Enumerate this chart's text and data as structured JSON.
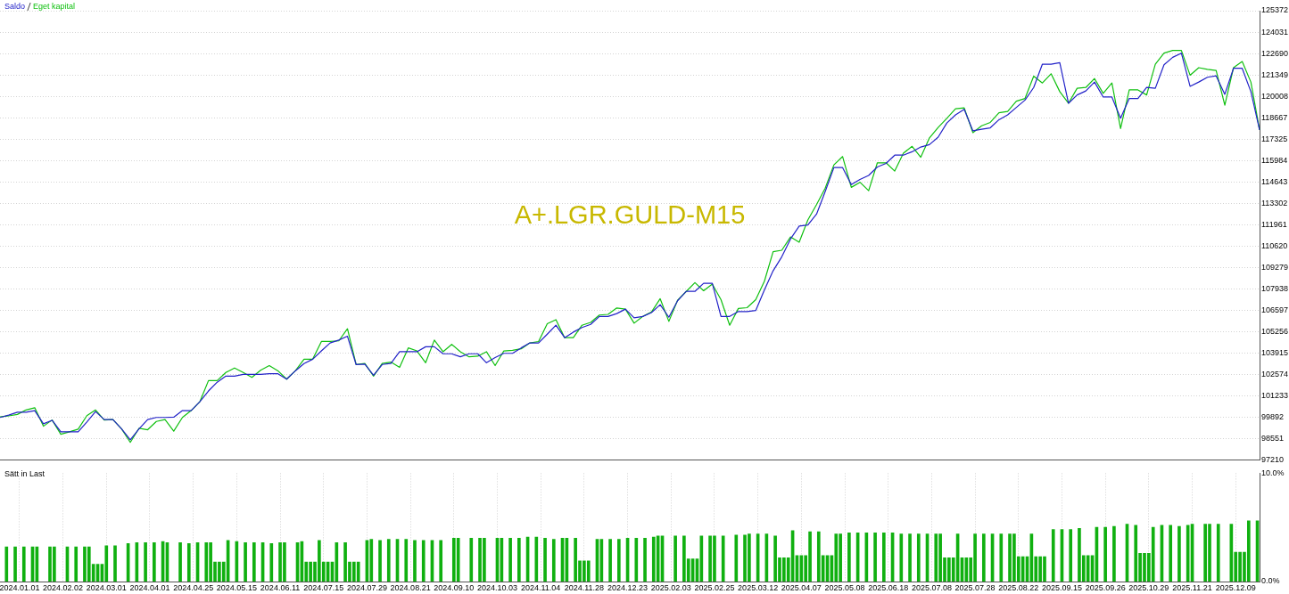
{
  "chart_data": [
    {
      "type": "line",
      "title": "A+.LGR.GULD-M15",
      "legend": "top left",
      "marker": "none",
      "grid": "y",
      "tick_labels": "y",
      "categories": [
        null,
        null,
        null,
        null,
        null,
        null,
        null,
        null,
        null,
        null,
        null,
        null,
        null,
        null,
        null,
        null,
        null,
        null,
        null,
        null,
        null,
        null,
        null,
        null,
        null,
        null,
        null,
        null,
        null,
        null,
        null,
        null,
        null,
        null,
        null,
        null,
        null,
        null,
        null,
        null,
        null,
        null,
        null,
        null,
        null,
        null,
        null,
        null,
        null,
        null,
        null,
        null,
        null,
        null,
        null,
        null,
        null,
        null,
        null,
        null,
        null,
        null,
        null,
        null,
        null,
        null,
        null,
        null,
        null,
        null,
        null,
        null,
        null,
        null,
        null,
        null,
        null,
        null,
        null,
        null,
        null,
        null,
        null,
        null,
        null,
        null,
        null,
        null,
        null,
        null,
        null,
        null,
        null,
        null,
        null,
        null,
        null,
        null,
        null,
        null,
        null,
        null,
        null,
        null,
        null,
        null,
        null,
        null,
        null,
        null,
        null,
        null,
        null,
        null,
        null,
        null,
        null,
        null,
        null,
        null,
        null,
        null,
        null,
        null,
        null,
        null,
        null,
        null,
        null,
        null,
        null,
        null,
        null,
        null,
        null,
        null,
        null,
        null,
        null,
        null,
        null,
        null,
        null,
        null,
        null,
        null
      ],
      "ylim": [
        97210,
        125372
      ],
      "yticks": [
        97210,
        98551,
        99892,
        101233,
        102574,
        103915,
        105256,
        106597,
        107938,
        109279,
        110620,
        111961,
        113302,
        114643,
        115984,
        117325,
        118667,
        120008,
        121349,
        122690,
        124031,
        125372
      ],
      "series": [
        {
          "name": "Saldo",
          "color": "#2222c8",
          "values": [
            99880,
            100030,
            100210,
            100210,
            100310,
            99480,
            99700,
            98980,
            98980,
            98980,
            99600,
            100250,
            99750,
            99750,
            99160,
            98480,
            99160,
            99750,
            99880,
            99880,
            99900,
            100310,
            100310,
            100860,
            101540,
            102090,
            102470,
            102470,
            102580,
            102580,
            102580,
            102620,
            102620,
            102280,
            102800,
            103260,
            103530,
            104050,
            104550,
            104730,
            104970,
            103190,
            103220,
            102520,
            103200,
            103260,
            104000,
            104000,
            104000,
            104310,
            104310,
            103870,
            103870,
            103680,
            103870,
            103870,
            103310,
            103630,
            103900,
            103900,
            104240,
            104550,
            104550,
            105100,
            105660,
            104880,
            105230,
            105520,
            105710,
            106210,
            106210,
            106390,
            106670,
            106120,
            106210,
            106450,
            106950,
            106160,
            107190,
            107780,
            107780,
            108290,
            108290,
            106210,
            106210,
            106520,
            106520,
            106580,
            107870,
            109070,
            109950,
            111060,
            111870,
            111940,
            112620,
            114040,
            115540,
            115540,
            114470,
            114800,
            115050,
            115580,
            115800,
            116320,
            116320,
            116530,
            116830,
            116980,
            117450,
            118330,
            118840,
            119190,
            117840,
            117940,
            118030,
            118540,
            118840,
            119310,
            119770,
            120560,
            122020,
            122020,
            122110,
            119570,
            120090,
            120340,
            120900,
            119960,
            119960,
            118630,
            119870,
            119870,
            120560,
            120510,
            121980,
            122450,
            122710,
            120630,
            120900,
            121200,
            121290,
            120130,
            121760,
            121760,
            120300,
            117900
          ]
        },
        {
          "name": "Eget kapital",
          "color": "#10c010",
          "values": [
            99910,
            99980,
            100070,
            100350,
            100490,
            99330,
            99720,
            98830,
            98980,
            99150,
            99990,
            100350,
            99720,
            99750,
            99160,
            98320,
            99200,
            99110,
            99630,
            99750,
            99020,
            99880,
            100310,
            100860,
            102190,
            102190,
            102700,
            102980,
            102700,
            102390,
            102840,
            103130,
            102800,
            102280,
            102800,
            103530,
            103530,
            104640,
            104640,
            104680,
            105440,
            103200,
            103260,
            102470,
            103260,
            103350,
            103020,
            104240,
            104050,
            103310,
            104730,
            104000,
            104460,
            104000,
            103680,
            103720,
            104000,
            103130,
            104050,
            104090,
            104180,
            104550,
            104640,
            105750,
            106010,
            104880,
            104880,
            105660,
            105840,
            106300,
            106340,
            106740,
            106670,
            105790,
            106210,
            106490,
            107320,
            105900,
            107220,
            107780,
            108330,
            107820,
            108240,
            107260,
            105660,
            106710,
            106760,
            107260,
            108420,
            110270,
            110360,
            111190,
            110860,
            112260,
            113220,
            114250,
            115710,
            116230,
            114300,
            114620,
            114090,
            115840,
            115840,
            115320,
            116440,
            116870,
            116190,
            117400,
            118050,
            118630,
            119230,
            119280,
            117730,
            118160,
            118370,
            118970,
            119060,
            119700,
            119870,
            121270,
            120840,
            121420,
            120300,
            119570,
            120510,
            120560,
            121120,
            120190,
            120840,
            117990,
            120410,
            120410,
            120090,
            122020,
            122710,
            122880,
            122880,
            121330,
            121800,
            121700,
            121630,
            119450,
            121800,
            122190,
            120900,
            117900
          ]
        }
      ]
    },
    {
      "type": "bar",
      "title": "Sätt in Last",
      "color": "#10b010",
      "grid": "x",
      "categories": [
        null,
        null,
        null,
        null,
        "2024.01.01",
        null,
        null,
        null,
        null,
        null,
        null,
        null,
        null,
        null,
        "2024.02.02",
        null,
        null,
        null,
        null,
        null,
        null,
        null,
        null,
        null,
        "2024.03.01",
        null,
        null,
        null,
        null,
        null,
        null,
        null,
        null,
        null,
        "2024.04.01",
        null,
        null,
        null,
        null,
        null,
        null,
        null,
        null,
        null,
        "2024.04.25",
        null,
        null,
        null,
        null,
        null,
        null,
        null,
        null,
        null,
        "2024.05.15",
        null,
        null,
        null,
        null,
        null,
        null,
        null,
        null,
        null,
        "2024.06.11",
        null,
        null,
        null,
        null,
        null,
        null,
        null,
        null,
        null,
        "2024.07.15",
        null,
        null,
        null,
        null,
        null,
        null,
        null,
        null,
        null,
        "2024.07.29",
        null,
        null,
        null,
        null,
        null,
        null,
        null,
        null,
        null,
        "2024.08.21",
        null,
        null,
        null,
        null,
        null,
        null,
        null,
        null,
        null,
        "2024.09.10",
        null,
        null,
        null,
        null,
        null,
        null,
        null,
        null,
        null,
        "2024.10.03",
        null,
        null,
        null,
        null,
        null,
        null,
        null,
        null,
        null,
        "2024.11.04",
        null,
        null,
        null,
        null,
        null,
        null,
        null,
        null,
        null,
        "2024.11.28",
        null,
        null,
        null,
        null,
        null,
        null,
        null,
        null,
        null,
        "2024.12.23",
        null,
        null,
        null,
        null,
        null,
        null,
        null,
        null,
        null,
        "2025.02.03",
        null,
        null,
        null,
        null,
        null,
        null,
        null,
        null,
        null,
        "2025.02.25",
        null,
        null,
        null,
        null,
        null,
        null,
        null,
        null,
        null,
        "2025.03.12",
        null,
        null,
        null,
        null,
        null,
        null,
        null,
        null,
        null,
        "2025.04.07",
        null,
        null,
        null,
        null,
        null,
        null,
        null,
        null,
        null,
        "2025.05.08",
        null,
        null,
        null,
        null,
        null,
        null,
        null,
        null,
        null,
        "2025.06.18",
        null,
        null,
        null,
        null,
        null,
        null,
        null,
        null,
        null,
        "2025.07.08",
        null,
        null,
        null,
        null,
        null,
        null,
        null,
        null,
        null,
        "2025.07.28",
        null,
        null,
        null,
        null,
        null,
        null,
        null,
        null,
        null,
        "2025.08.22",
        null,
        null,
        null,
        null,
        null,
        null,
        null,
        null,
        null,
        "2025.09.15",
        null,
        null,
        null,
        null,
        null,
        null,
        null,
        null,
        null,
        "2025.09.26",
        null,
        null,
        null,
        null,
        null,
        null,
        null,
        null,
        null,
        "2025.10.29",
        null,
        null,
        null,
        null,
        null,
        null,
        null,
        null,
        null,
        "2025.11.21",
        null,
        null,
        null,
        null,
        null,
        null,
        null,
        null,
        null,
        "2025.12.09",
        null,
        null,
        null,
        null,
        null
      ],
      "ylim": [
        0,
        10
      ],
      "yticks": [
        {
          "value": 0,
          "label": "0.0%"
        },
        {
          "value": 10,
          "label": "10.0%"
        }
      ],
      "values": [
        null,
        3.2,
        null,
        3.2,
        null,
        3.2,
        null,
        3.2,
        3.2,
        null,
        null,
        3.2,
        3.2,
        null,
        null,
        3.2,
        null,
        3.2,
        null,
        3.2,
        3.2,
        1.6,
        1.6,
        1.6,
        3.3,
        null,
        3.3,
        null,
        null,
        3.5,
        null,
        3.6,
        null,
        3.6,
        null,
        3.6,
        null,
        3.7,
        3.6,
        null,
        null,
        3.6,
        null,
        3.5,
        null,
        3.6,
        null,
        3.6,
        3.6,
        1.8,
        1.8,
        1.8,
        3.8,
        null,
        3.7,
        null,
        3.6,
        null,
        3.6,
        null,
        3.6,
        null,
        3.5,
        null,
        3.6,
        3.6,
        null,
        null,
        3.6,
        3.7,
        1.8,
        1.8,
        1.8,
        3.8,
        1.8,
        1.8,
        1.8,
        3.6,
        null,
        3.6,
        1.8,
        1.8,
        1.8,
        null,
        3.8,
        3.9,
        null,
        3.8,
        null,
        3.9,
        null,
        3.9,
        null,
        3.9,
        null,
        3.8,
        null,
        3.8,
        null,
        3.8,
        null,
        3.8,
        null,
        null,
        4.0,
        4.0,
        null,
        null,
        4.0,
        null,
        4.0,
        4.0,
        null,
        null,
        4.0,
        4.0,
        null,
        4.0,
        null,
        4.0,
        null,
        4.1,
        null,
        4.1,
        null,
        4.0,
        null,
        3.9,
        null,
        4.0,
        4.0,
        null,
        4.0,
        1.9,
        1.9,
        1.9,
        null,
        3.9,
        3.9,
        null,
        3.9,
        null,
        3.9,
        null,
        4.0,
        null,
        4.0,
        null,
        4.0,
        null,
        4.1,
        4.2,
        4.2,
        null,
        null,
        4.2,
        null,
        4.2,
        2.1,
        2.1,
        2.1,
        4.2,
        null,
        4.2,
        4.2,
        null,
        4.2,
        null,
        null,
        4.3,
        null,
        4.3,
        4.4,
        null,
        4.4,
        null,
        4.4,
        null,
        4.2,
        2.2,
        2.2,
        2.2,
        4.7,
        2.4,
        2.4,
        2.4,
        4.6,
        null,
        4.6,
        2.4,
        2.4,
        2.4,
        4.4,
        4.4,
        null,
        4.5,
        null,
        4.5,
        null,
        4.5,
        null,
        4.5,
        null,
        4.5,
        null,
        4.5,
        null,
        4.4,
        null,
        4.4,
        null,
        4.4,
        null,
        4.4,
        null,
        4.4,
        4.4,
        2.2,
        2.2,
        2.2,
        4.4,
        2.2,
        2.2,
        2.2,
        4.4,
        null,
        4.4,
        null,
        4.4,
        null,
        4.4,
        null,
        4.4,
        4.4,
        2.3,
        2.3,
        2.3,
        4.4,
        2.3,
        2.3,
        2.3,
        null,
        4.8,
        null,
        4.8,
        null,
        4.8,
        null,
        4.9,
        2.4,
        2.4,
        2.4,
        5.0,
        null,
        5.0,
        null,
        5.1,
        null,
        null,
        5.3,
        null,
        5.2,
        2.6,
        2.6,
        2.6,
        5.0,
        null,
        5.2,
        null,
        5.2,
        null,
        5.1,
        null,
        5.2,
        5.3,
        null,
        null,
        5.3,
        5.3,
        null,
        5.3,
        null,
        null,
        5.3,
        2.7,
        2.7,
        2.7,
        5.6,
        null,
        5.6
      ]
    }
  ]
}
